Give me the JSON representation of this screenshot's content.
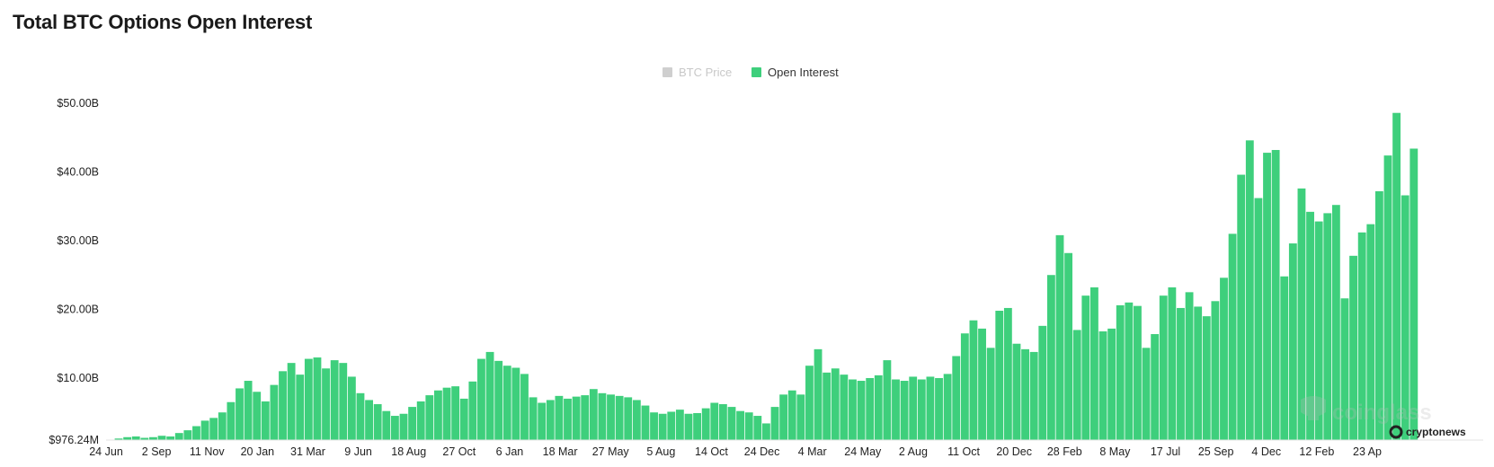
{
  "header": {
    "title": "Total BTC Options Open Interest"
  },
  "colors": {
    "open_interest": "#3ecf7c",
    "btc_price_legend_disabled": "#cfcfcf",
    "legend_disabled_text": "#c8c8c8",
    "axis_text": "#222222"
  },
  "watermarks": {
    "coinglass": "coinglass",
    "cryptonews": "cryptonews",
    "coinglass_icon": "coinglass-logo-icon",
    "cryptonews_icon": "cryptonews-logo-icon"
  },
  "chart_data": {
    "type": "bar",
    "title": "Total BTC Options Open Interest",
    "legend": {
      "placement": "top-center",
      "entries": [
        {
          "name": "BTC Price",
          "enabled": false
        },
        {
          "name": "Open Interest",
          "enabled": true
        }
      ]
    },
    "ylim": [
      976240000,
      50000000000
    ],
    "y_tick_labels": [
      "$976.24M",
      "$10.00B",
      "$20.00B",
      "$30.00B",
      "$40.00B",
      "$50.00B"
    ],
    "y_tick_values": [
      976240000,
      10000000000,
      20000000000,
      30000000000,
      40000000000,
      50000000000
    ],
    "x_tick_labels": [
      "24 Jun",
      "2 Sep",
      "11 Nov",
      "20 Jan",
      "31 Mar",
      "9 Jun",
      "18 Aug",
      "27 Oct",
      "6 Jan",
      "18 Mar",
      "27 May",
      "5 Aug",
      "14 Oct",
      "24 Dec",
      "4 Mar",
      "24 May",
      "2 Aug",
      "11 Oct",
      "20 Dec",
      "28 Feb",
      "8 May",
      "17 Jul",
      "25 Sep",
      "4 Dec",
      "12 Feb",
      "23 Ap"
    ],
    "grid": false,
    "series": [
      {
        "name": "Open Interest",
        "unit": "USD billions",
        "values": [
          0.98,
          1.2,
          1.4,
          1.5,
          1.3,
          1.4,
          1.6,
          1.5,
          2.0,
          2.4,
          3.0,
          3.8,
          4.2,
          5.0,
          6.5,
          8.5,
          9.6,
          8.0,
          6.6,
          9.0,
          11.0,
          12.2,
          10.5,
          12.8,
          13.0,
          11.4,
          12.6,
          12.2,
          10.2,
          7.8,
          6.8,
          6.2,
          5.2,
          4.5,
          4.8,
          5.8,
          6.6,
          7.5,
          8.2,
          8.6,
          8.8,
          7.0,
          9.5,
          12.8,
          13.8,
          12.5,
          11.8,
          11.5,
          10.6,
          7.2,
          6.4,
          6.8,
          7.4,
          7.0,
          7.3,
          7.5,
          8.4,
          7.8,
          7.6,
          7.4,
          7.2,
          6.8,
          6.0,
          5.0,
          4.8,
          5.1,
          5.4,
          4.8,
          4.9,
          5.6,
          6.4,
          6.2,
          5.8,
          5.2,
          5.0,
          4.5,
          3.4,
          5.8,
          7.6,
          8.2,
          7.6,
          11.8,
          14.2,
          10.8,
          11.4,
          10.5,
          9.8,
          9.6,
          10.0,
          10.4,
          12.6,
          9.8,
          9.6,
          10.2,
          9.8,
          10.2,
          10.0,
          10.6,
          13.2,
          16.5,
          18.4,
          17.2,
          14.4,
          19.8,
          20.2,
          15.0,
          14.2,
          13.8,
          17.6,
          25.0,
          30.8,
          28.2,
          17.0,
          22.0,
          23.2,
          16.8,
          17.2,
          20.6,
          21.0,
          20.5,
          14.4,
          16.4,
          22.0,
          23.2,
          20.2,
          22.5,
          20.4,
          19.0,
          21.2,
          24.6,
          31.0,
          39.6,
          44.6,
          36.2,
          42.8,
          43.2,
          24.8,
          29.6,
          37.6,
          34.2,
          32.8,
          34.0,
          35.2,
          21.6,
          27.8,
          31.2,
          32.4,
          37.2,
          42.4,
          48.6,
          36.6,
          43.4
        ]
      }
    ]
  }
}
